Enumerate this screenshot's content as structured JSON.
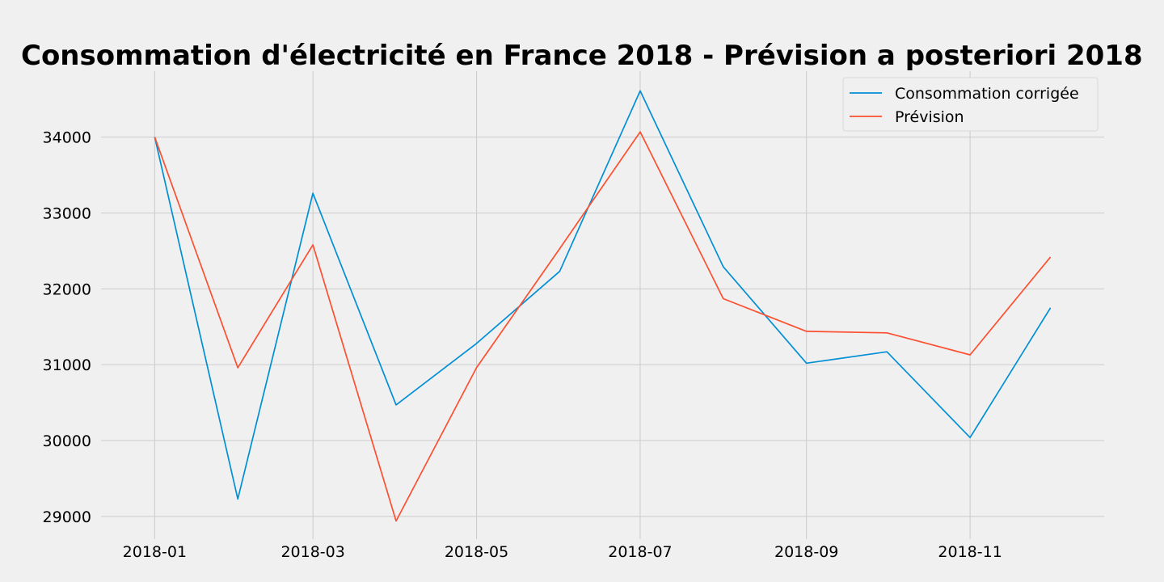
{
  "chart_data": {
    "type": "line",
    "title": "Consommation d'électricité en France 2018 - Prévision a posteriori 2018",
    "xlabel": "",
    "ylabel": "",
    "x": [
      "2018-01-01",
      "2018-02-01",
      "2018-03-01",
      "2018-04-01",
      "2018-05-01",
      "2018-06-01",
      "2018-07-01",
      "2018-08-01",
      "2018-09-01",
      "2018-10-01",
      "2018-11-01",
      "2018-12-01"
    ],
    "x_ticks": [
      "2018-01",
      "2018-03",
      "2018-05",
      "2018-07",
      "2018-09",
      "2018-11"
    ],
    "y_ticks": [
      29000,
      30000,
      31000,
      32000,
      33000,
      34000
    ],
    "ylim": [
      28700,
      34870
    ],
    "grid": true,
    "legend_position": "top-right",
    "series": [
      {
        "name": "Consommation corrigée",
        "color": "#008fd5",
        "values": [
          34000,
          29230,
          33260,
          30470,
          31280,
          32230,
          34610,
          32290,
          31020,
          31170,
          30040,
          31750
        ]
      },
      {
        "name": "Prévision",
        "color": "#fc4f30",
        "values": [
          34000,
          30960,
          32580,
          28940,
          30960,
          32530,
          34070,
          31870,
          31440,
          31420,
          31130,
          32420
        ]
      }
    ]
  }
}
